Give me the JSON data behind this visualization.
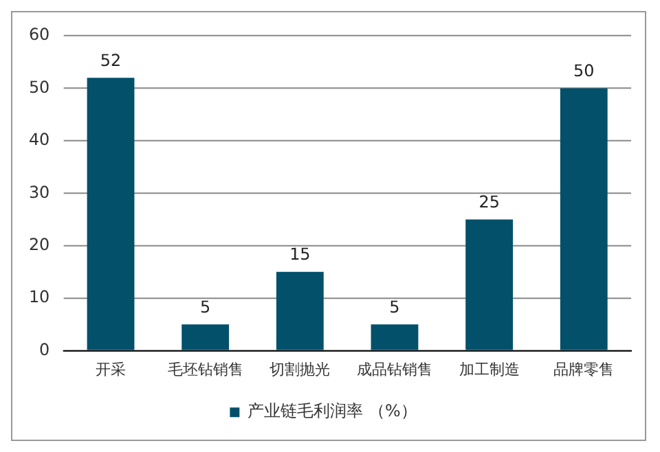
{
  "chart_data": {
    "type": "bar",
    "categories": [
      "开采",
      "毛坯钻销售",
      "切割抛光",
      "成品钻销售",
      "加工制造",
      "品牌零售"
    ],
    "series": [
      {
        "name": "产业链毛利润率 （%）",
        "color": "#02506a",
        "values": [
          52,
          5,
          15,
          5,
          25,
          50
        ]
      }
    ],
    "ylim": [
      0,
      60
    ],
    "yticks": [
      0,
      10,
      20,
      30,
      40,
      50,
      60
    ],
    "grid": "y",
    "legend": "bottom",
    "data_labels": true
  }
}
